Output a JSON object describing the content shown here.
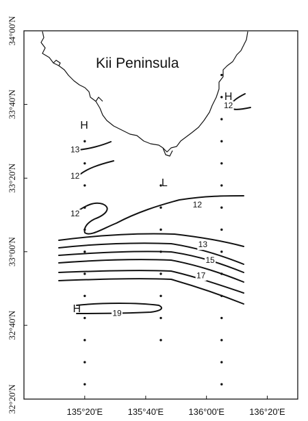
{
  "map": {
    "region_label": "Kii Peninsula",
    "lat_ticks": [
      "34°00'N",
      "33°40'N",
      "33°20'N",
      "33°00'N",
      "32°40'N",
      "32°20'N"
    ],
    "lon_ticks": [
      "135°20'E",
      "135°40'E",
      "136°00'E",
      "136°20'E"
    ],
    "pressure_marks": [
      {
        "text": "H",
        "lon": 135.33,
        "lat": 33.57
      },
      {
        "text": "H",
        "lon": 136.12,
        "lat": 33.7
      },
      {
        "text": "L",
        "lon": 135.77,
        "lat": 33.31
      },
      {
        "text": "H",
        "lon": 135.29,
        "lat": 32.74
      }
    ],
    "contour_labels": [
      {
        "text": "13",
        "lon": 135.28,
        "lat": 33.46
      },
      {
        "text": "12",
        "lon": 135.28,
        "lat": 33.34
      },
      {
        "text": "12",
        "lon": 135.28,
        "lat": 33.17
      },
      {
        "text": "12",
        "lon": 136.12,
        "lat": 33.66
      },
      {
        "text": "12",
        "lon": 135.95,
        "lat": 33.21
      },
      {
        "text": "13",
        "lon": 135.98,
        "lat": 33.03
      },
      {
        "text": "15",
        "lon": 136.02,
        "lat": 32.96
      },
      {
        "text": "17",
        "lon": 135.97,
        "lat": 32.89
      },
      {
        "text": "19",
        "lon": 135.51,
        "lat": 32.72
      }
    ],
    "station_lines": [
      {
        "lon": 135.333,
        "lats": [
          33.5,
          33.4,
          33.3,
          33.2,
          33.1,
          33.0,
          32.9,
          32.8,
          32.7,
          32.6,
          32.5,
          32.4
        ]
      },
      {
        "lon": 135.75,
        "lats": [
          33.3,
          33.2,
          33.1,
          33.0,
          32.9,
          32.8,
          32.7,
          32.6
        ]
      },
      {
        "lon": 136.083,
        "lats": [
          33.8,
          33.7,
          33.6,
          33.5,
          33.4,
          33.3,
          33.2,
          33.1,
          33.0,
          32.9,
          32.8,
          32.7,
          32.6,
          32.5,
          32.4
        ]
      }
    ]
  }
}
